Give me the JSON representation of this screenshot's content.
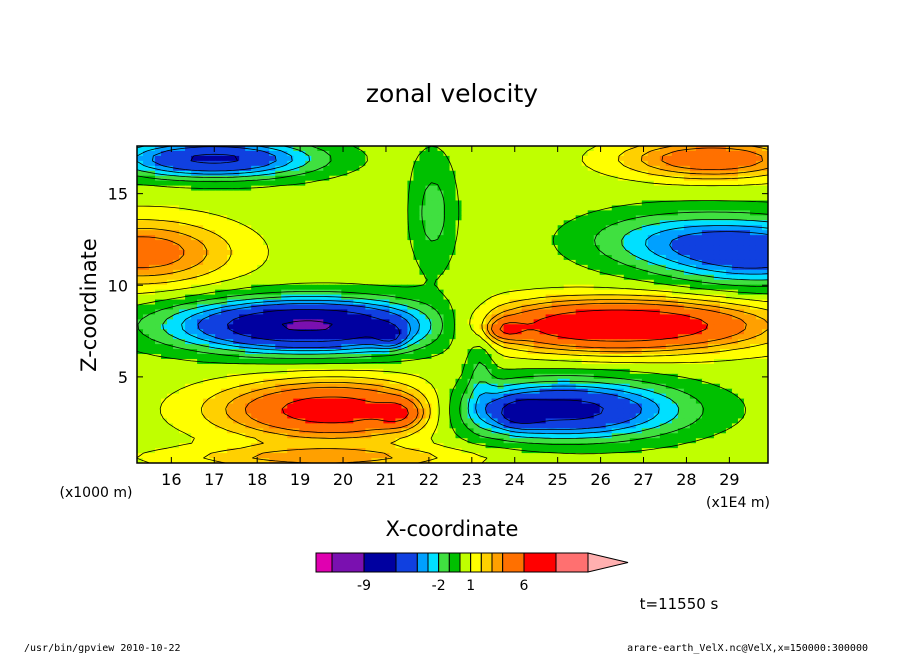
{
  "chart_data": {
    "type": "heatmap",
    "title": "zonal velocity",
    "xlabel": "X-coordinate",
    "ylabel": "Z-coordinate",
    "x_unit": "(x1E4 m)",
    "y_unit": "(x1000 m)",
    "x_range": [
      15.2,
      29.9
    ],
    "y_range": [
      0.3,
      17.6
    ],
    "x_ticks": [
      "16",
      "17",
      "18",
      "19",
      "20",
      "21",
      "22",
      "23",
      "24",
      "25",
      "26",
      "27",
      "28",
      "29"
    ],
    "y_ticks": [
      "5",
      "10",
      "15"
    ],
    "colorbar": {
      "levels": [
        -12,
        -9,
        -6,
        -4,
        -3,
        -2,
        -1,
        0,
        1,
        2,
        3,
        4,
        6,
        9,
        12
      ],
      "labels": [
        "-9",
        "-2",
        "1",
        "6"
      ],
      "colors": [
        "#e000b0",
        "#7a10b0",
        "#0000a0",
        "#1040e0",
        "#00a0ff",
        "#00e0ff",
        "#40e040",
        "#00c000",
        "#c0ff00",
        "#ffff00",
        "#ffd000",
        "#ffa000",
        "#ff7000",
        "#ff0000",
        "#ff7070",
        "#ffb0b0"
      ]
    },
    "time_label": "t=11550 s"
  },
  "footer": {
    "left": "/usr/bin/gpview  2010-10-22",
    "right": "arare-earth_VelX.nc@VelX,x=150000:300000"
  }
}
